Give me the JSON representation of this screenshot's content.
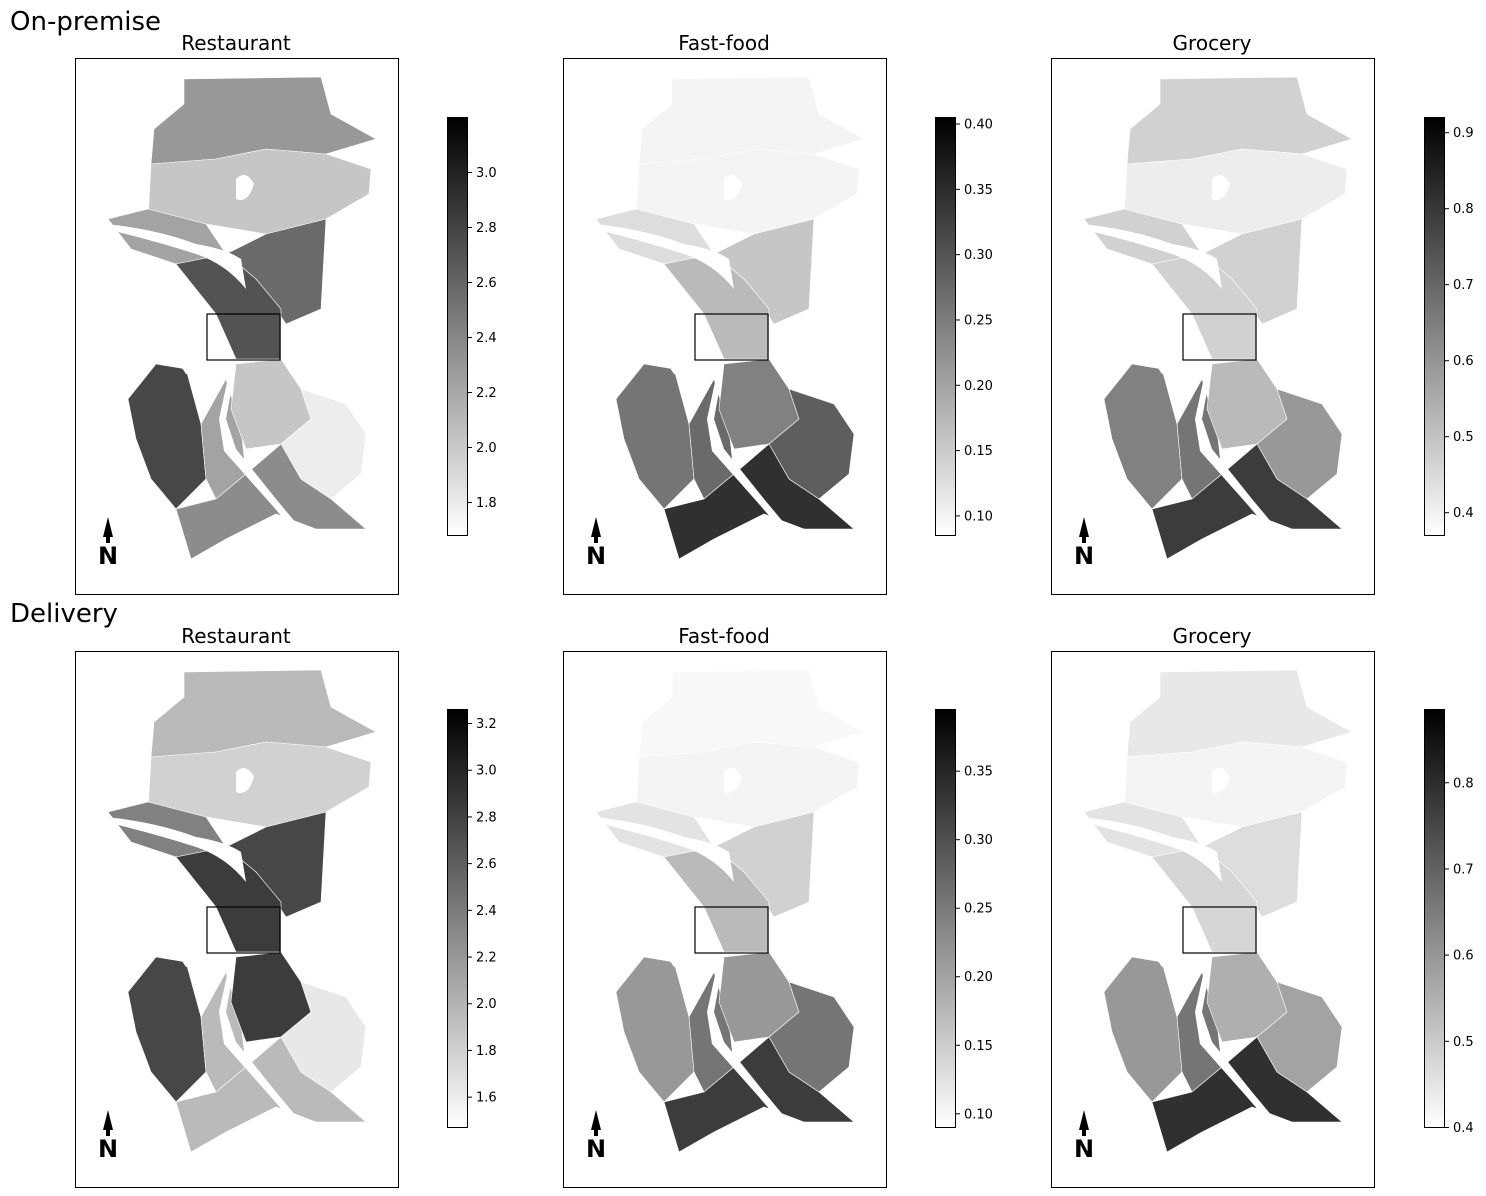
{
  "rows": [
    {
      "title": "On-premise",
      "panels": [
        {
          "title": "Restaurant",
          "colorbar": {
            "min": 1.68,
            "max": 3.2,
            "ticks": [
              "1.8",
              "2.0",
              "2.2",
              "2.4",
              "2.6",
              "2.8",
              "3.0"
            ],
            "tick_values": [
              1.8,
              2.0,
              2.2,
              2.4,
              2.6,
              2.8,
              3.0
            ]
          },
          "tones": {
            "north": 0.45,
            "north_center": 0.25,
            "ballard": 0.4,
            "central": 0.65,
            "downtown": 0.75,
            "west": 0.8,
            "south_west": 0.4,
            "south_center": 0.25,
            "south_east": 0.08,
            "far_south": 0.5
          }
        },
        {
          "title": "Fast-food",
          "colorbar": {
            "min": 0.085,
            "max": 0.405,
            "ticks": [
              "0.10",
              "0.15",
              "0.20",
              "0.25",
              "0.30",
              "0.35",
              "0.40"
            ],
            "tick_values": [
              0.1,
              0.15,
              0.2,
              0.25,
              0.3,
              0.35,
              0.4
            ]
          },
          "tones": {
            "north": 0.05,
            "north_center": 0.05,
            "ballard": 0.15,
            "central": 0.25,
            "downtown": 0.3,
            "west": 0.6,
            "south_west": 0.65,
            "south_center": 0.55,
            "south_east": 0.7,
            "far_south": 0.9
          }
        },
        {
          "title": "Grocery",
          "colorbar": {
            "min": 0.37,
            "max": 0.92,
            "ticks": [
              "0.4",
              "0.5",
              "0.6",
              "0.7",
              "0.8",
              "0.9"
            ],
            "tick_values": [
              0.4,
              0.5,
              0.6,
              0.7,
              0.8,
              0.9
            ]
          },
          "tones": {
            "north": 0.2,
            "north_center": 0.08,
            "ballard": 0.2,
            "central": 0.2,
            "downtown": 0.2,
            "west": 0.55,
            "south_west": 0.6,
            "south_center": 0.3,
            "south_east": 0.45,
            "far_south": 0.85
          }
        }
      ]
    },
    {
      "title": "Delivery",
      "panels": [
        {
          "title": "Restaurant",
          "colorbar": {
            "min": 1.47,
            "max": 3.26,
            "ticks": [
              "1.6",
              "1.8",
              "2.0",
              "2.2",
              "2.4",
              "2.6",
              "2.8",
              "3.0",
              "3.2"
            ],
            "tick_values": [
              1.6,
              1.8,
              2.0,
              2.2,
              2.4,
              2.6,
              2.8,
              3.0,
              3.2
            ]
          },
          "tones": {
            "north": 0.3,
            "north_center": 0.2,
            "ballard": 0.55,
            "central": 0.8,
            "downtown": 0.85,
            "west": 0.8,
            "south_west": 0.3,
            "south_center": 0.85,
            "south_east": 0.1,
            "far_south": 0.3
          }
        },
        {
          "title": "Fast-food",
          "colorbar": {
            "min": 0.09,
            "max": 0.395,
            "ticks": [
              "0.10",
              "0.15",
              "0.20",
              "0.25",
              "0.30",
              "0.35"
            ],
            "tick_values": [
              0.1,
              0.15,
              0.2,
              0.25,
              0.3,
              0.35
            ]
          },
          "tones": {
            "north": 0.03,
            "north_center": 0.05,
            "ballard": 0.12,
            "central": 0.2,
            "downtown": 0.3,
            "west": 0.45,
            "south_west": 0.6,
            "south_center": 0.45,
            "south_east": 0.6,
            "far_south": 0.85
          }
        },
        {
          "title": "Grocery",
          "colorbar": {
            "min": 0.4,
            "max": 0.885,
            "ticks": [
              "0.4",
              "0.5",
              "0.6",
              "0.7",
              "0.8"
            ],
            "tick_values": [
              0.4,
              0.5,
              0.6,
              0.7,
              0.8
            ]
          },
          "tones": {
            "north": 0.1,
            "north_center": 0.05,
            "ballard": 0.12,
            "central": 0.15,
            "downtown": 0.18,
            "west": 0.45,
            "south_west": 0.6,
            "south_center": 0.35,
            "south_east": 0.4,
            "far_south": 0.9
          }
        }
      ]
    }
  ],
  "north_arrow_label": "N"
}
